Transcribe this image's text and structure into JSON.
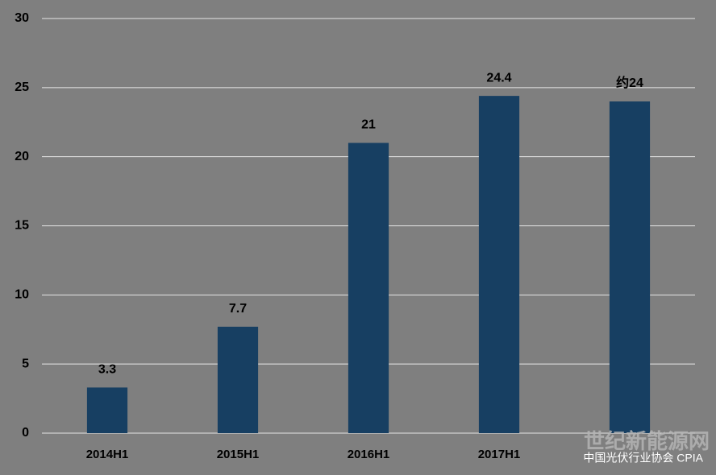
{
  "chart_data": {
    "type": "bar",
    "categories": [
      "2014H1",
      "2015H1",
      "2016H1",
      "2017H1",
      null
    ],
    "values": [
      3.3,
      7.7,
      21,
      24.4,
      24
    ],
    "value_labels": [
      "3.3",
      "7.7",
      "21",
      "24.4",
      "约24"
    ],
    "color": "#173f62",
    "ylim": [
      0,
      30
    ],
    "yticks": [
      0,
      5,
      10,
      15,
      20,
      25,
      30
    ],
    "grid": true,
    "watermark": "世纪新能源网",
    "source": "中国光伏行业协会 CPIA"
  }
}
